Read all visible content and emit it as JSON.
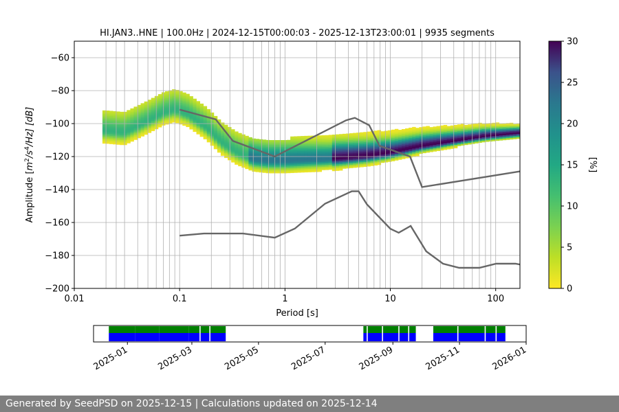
{
  "chart_data": [
    {
      "type": "heatmap",
      "title": "HI.JAN3..HNE | 100.0Hz | 2024-12-15T00:00:03 - 2025-12-13T23:00:01 | 9935 segments",
      "xlabel": "Period [s]",
      "ylabel": "Amplitude [m²/s⁴/Hz] [dB]",
      "ylabel_parts": {
        "pre": "Amplitude [",
        "m": "m",
        "sup1": "2",
        "mid": "/s",
        "sup2": "4",
        "post": "/Hz] [dB]"
      },
      "x_scale": "log",
      "xlim": [
        0.01,
        170
      ],
      "ylim": [
        -200,
        -50
      ],
      "x_ticks": [
        0.01,
        0.1,
        1,
        10,
        100
      ],
      "x_tick_labels": [
        "0.01",
        "0.1",
        "1",
        "10",
        "100"
      ],
      "y_ticks": [
        -200,
        -180,
        -160,
        -140,
        -120,
        -100,
        -80,
        -60
      ],
      "y_tick_labels": [
        "−200",
        "−180",
        "−160",
        "−140",
        "−120",
        "−100",
        "−80",
        "−60"
      ],
      "grid_periods": [
        0.02,
        0.025,
        0.03,
        0.04,
        0.05,
        0.06,
        0.07,
        0.08,
        0.09,
        0.1,
        0.2,
        0.3,
        0.4,
        0.5,
        0.6,
        0.7,
        0.8,
        0.9,
        1,
        2,
        3,
        4,
        5,
        6,
        7,
        8,
        9,
        10,
        20,
        30,
        40,
        50,
        60,
        70,
        80,
        90,
        100
      ],
      "psd_mode": {
        "period": [
          0.02,
          0.03,
          0.05,
          0.07,
          0.09,
          0.12,
          0.18,
          0.25,
          0.35,
          0.5,
          0.7,
          1.0,
          1.5,
          2.5,
          4.0,
          6.0,
          10.0,
          20.0,
          40.0,
          80.0,
          170.0
        ],
        "db": [
          -105,
          -106,
          -99,
          -94,
          -92,
          -95,
          -103,
          -112,
          -118,
          -122,
          -123,
          -123,
          -122.5,
          -122,
          -121,
          -120,
          -118,
          -114,
          -111,
          -108,
          -106
        ]
      },
      "nlnm": {
        "period": [
          0.1,
          0.17,
          0.4,
          0.8,
          1.24,
          2.4,
          4.3,
          5.0,
          6.0,
          10.0,
          12.0,
          15.6,
          21.9,
          31.6,
          45.0,
          70.0,
          101.0,
          154.0,
          170.0
        ],
        "db": [
          -168,
          -166.7,
          -166.7,
          -169.2,
          -163.7,
          -148.6,
          -141.1,
          -141.1,
          -149.0,
          -163.8,
          -166.2,
          -162.1,
          -177.5,
          -185.0,
          -187.5,
          -187.5,
          -185.0,
          -185.0,
          -185.5
        ]
      },
      "nhnm": {
        "period": [
          0.1,
          0.22,
          0.32,
          0.8,
          3.8,
          4.6,
          6.3,
          7.9,
          15.4,
          20.0,
          170.0
        ],
        "db": [
          -91.5,
          -97.4,
          -110.5,
          -120.0,
          -98.0,
          -96.5,
          -101.0,
          -113.5,
          -120.0,
          -138.5,
          -129
        ]
      },
      "colorbar": {
        "label": "[%]",
        "min": 0,
        "max": 30,
        "ticks": [
          0,
          5,
          10,
          15,
          20,
          25,
          30
        ],
        "tick_labels": [
          "0",
          "5",
          "10",
          "15",
          "20",
          "25",
          "30"
        ],
        "colormap": "viridis_r"
      }
    },
    {
      "type": "timeline",
      "xlim": [
        "2024-12-01",
        "2026-01-01"
      ],
      "x_tick_labels": [
        "2025-01",
        "2025-03",
        "2025-05",
        "2025-07",
        "2025-09",
        "2025-11",
        "2026-01"
      ],
      "x_tick_dates": [
        "2025-01-01",
        "2025-03-01",
        "2025-05-01",
        "2025-07-01",
        "2025-09-01",
        "2025-11-01",
        "2026-01-01"
      ],
      "data_segments": [
        [
          "2024-12-15",
          "2025-01-08"
        ],
        [
          "2025-01-08",
          "2025-01-30"
        ],
        [
          "2025-01-30",
          "2025-02-26"
        ],
        [
          "2025-02-26",
          "2025-03-08"
        ],
        [
          "2025-03-09",
          "2025-03-17"
        ],
        [
          "2025-03-18",
          "2025-04-01"
        ],
        [
          "2025-08-05",
          "2025-08-08"
        ],
        [
          "2025-08-09",
          "2025-08-22"
        ],
        [
          "2025-08-23",
          "2025-09-06"
        ],
        [
          "2025-09-07",
          "2025-09-15"
        ],
        [
          "2025-09-16",
          "2025-09-22"
        ],
        [
          "2025-10-08",
          "2025-10-30"
        ],
        [
          "2025-10-31",
          "2025-11-24"
        ],
        [
          "2025-11-25",
          "2025-12-04"
        ],
        [
          "2025-12-05",
          "2025-12-13"
        ]
      ],
      "colors": {
        "available": "#008000",
        "used": "#0000ff"
      }
    }
  ],
  "footer": {
    "text": "Generated by SeedPSD on 2025-12-15 | Calculations updated on 2025-12-14"
  }
}
